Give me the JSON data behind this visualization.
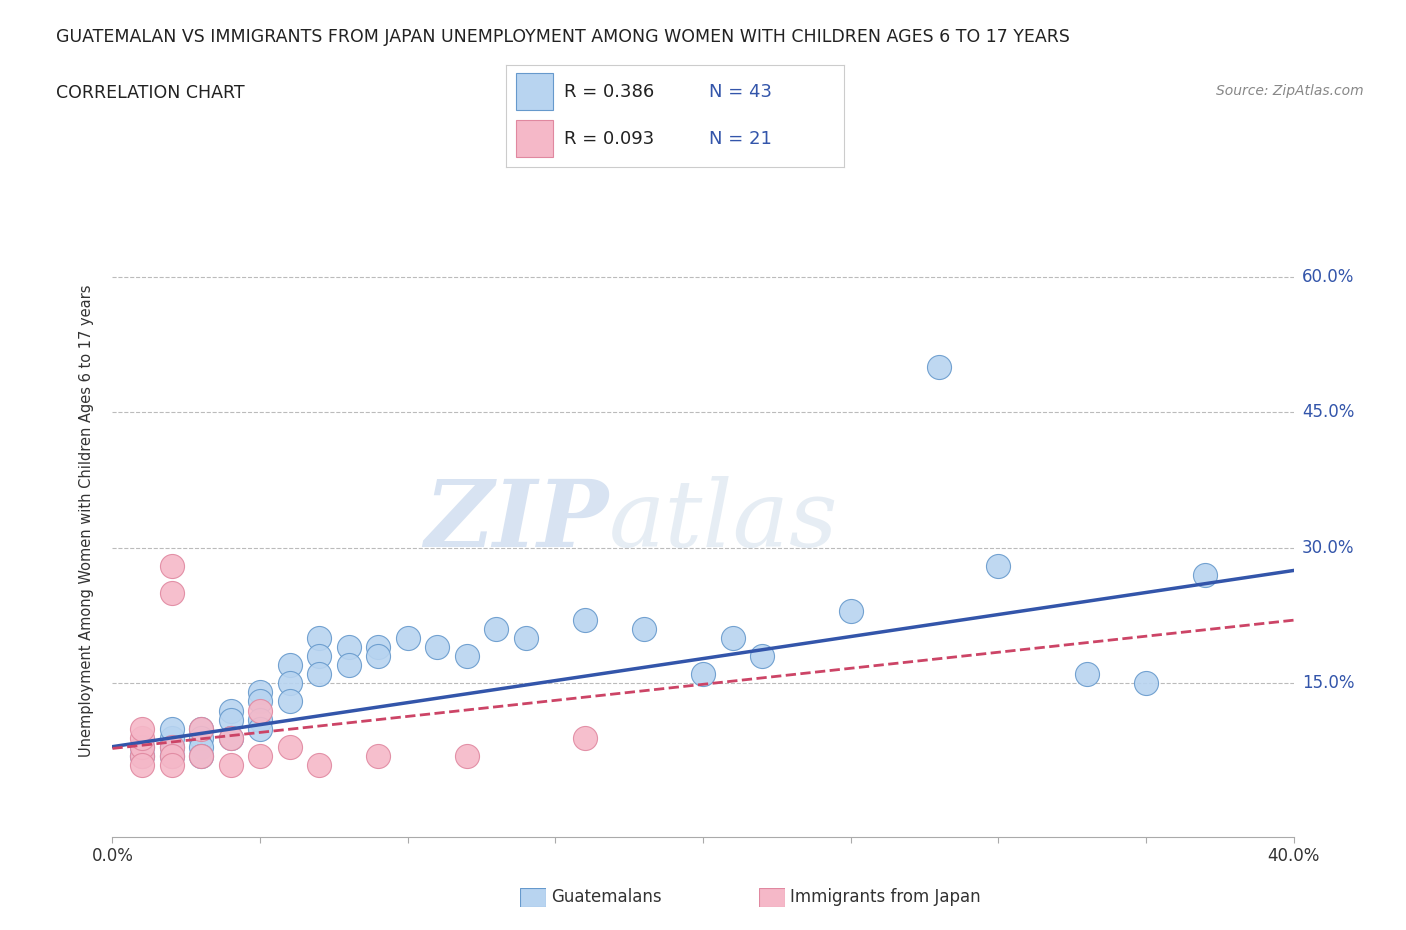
{
  "title": "GUATEMALAN VS IMMIGRANTS FROM JAPAN UNEMPLOYMENT AMONG WOMEN WITH CHILDREN AGES 6 TO 17 YEARS",
  "subtitle": "CORRELATION CHART",
  "source": "Source: ZipAtlas.com",
  "ylabel": "Unemployment Among Women with Children Ages 6 to 17 years",
  "xlim": [
    0.0,
    0.4
  ],
  "ylim": [
    -0.02,
    0.68
  ],
  "xticks": [
    0.0,
    0.05,
    0.1,
    0.15,
    0.2,
    0.25,
    0.3,
    0.35,
    0.4
  ],
  "ytick_labels": [
    "15.0%",
    "30.0%",
    "45.0%",
    "60.0%"
  ],
  "ytick_positions": [
    0.15,
    0.3,
    0.45,
    0.6
  ],
  "blue_color": "#b8d4f0",
  "blue_edge_color": "#6699cc",
  "blue_line_color": "#3355aa",
  "pink_color": "#f5b8c8",
  "pink_edge_color": "#e088a0",
  "pink_line_color": "#cc4466",
  "legend_text_color": "#3355aa",
  "watermark_zip": "ZIP",
  "watermark_atlas": "atlas",
  "guatemalans_x": [
    0.01,
    0.01,
    0.02,
    0.02,
    0.02,
    0.02,
    0.03,
    0.03,
    0.03,
    0.03,
    0.04,
    0.04,
    0.04,
    0.05,
    0.05,
    0.05,
    0.05,
    0.06,
    0.06,
    0.06,
    0.07,
    0.07,
    0.07,
    0.08,
    0.08,
    0.09,
    0.09,
    0.1,
    0.11,
    0.12,
    0.13,
    0.14,
    0.16,
    0.18,
    0.2,
    0.21,
    0.22,
    0.25,
    0.28,
    0.3,
    0.33,
    0.35,
    0.37
  ],
  "guatemalans_y": [
    0.07,
    0.08,
    0.08,
    0.09,
    0.1,
    0.07,
    0.1,
    0.09,
    0.08,
    0.07,
    0.12,
    0.11,
    0.09,
    0.14,
    0.13,
    0.11,
    0.1,
    0.17,
    0.15,
    0.13,
    0.2,
    0.18,
    0.16,
    0.19,
    0.17,
    0.19,
    0.18,
    0.2,
    0.19,
    0.18,
    0.21,
    0.2,
    0.22,
    0.21,
    0.16,
    0.2,
    0.18,
    0.23,
    0.5,
    0.28,
    0.16,
    0.15,
    0.27
  ],
  "japan_x": [
    0.01,
    0.01,
    0.01,
    0.01,
    0.01,
    0.02,
    0.02,
    0.02,
    0.02,
    0.02,
    0.03,
    0.03,
    0.04,
    0.04,
    0.05,
    0.05,
    0.06,
    0.07,
    0.09,
    0.12,
    0.16
  ],
  "japan_y": [
    0.07,
    0.08,
    0.06,
    0.09,
    0.1,
    0.28,
    0.25,
    0.08,
    0.07,
    0.06,
    0.1,
    0.07,
    0.09,
    0.06,
    0.12,
    0.07,
    0.08,
    0.06,
    0.07,
    0.07,
    0.09
  ],
  "blue_trend": [
    0.0,
    0.08,
    0.4,
    0.275
  ],
  "pink_trend": [
    0.0,
    0.078,
    0.4,
    0.22
  ]
}
